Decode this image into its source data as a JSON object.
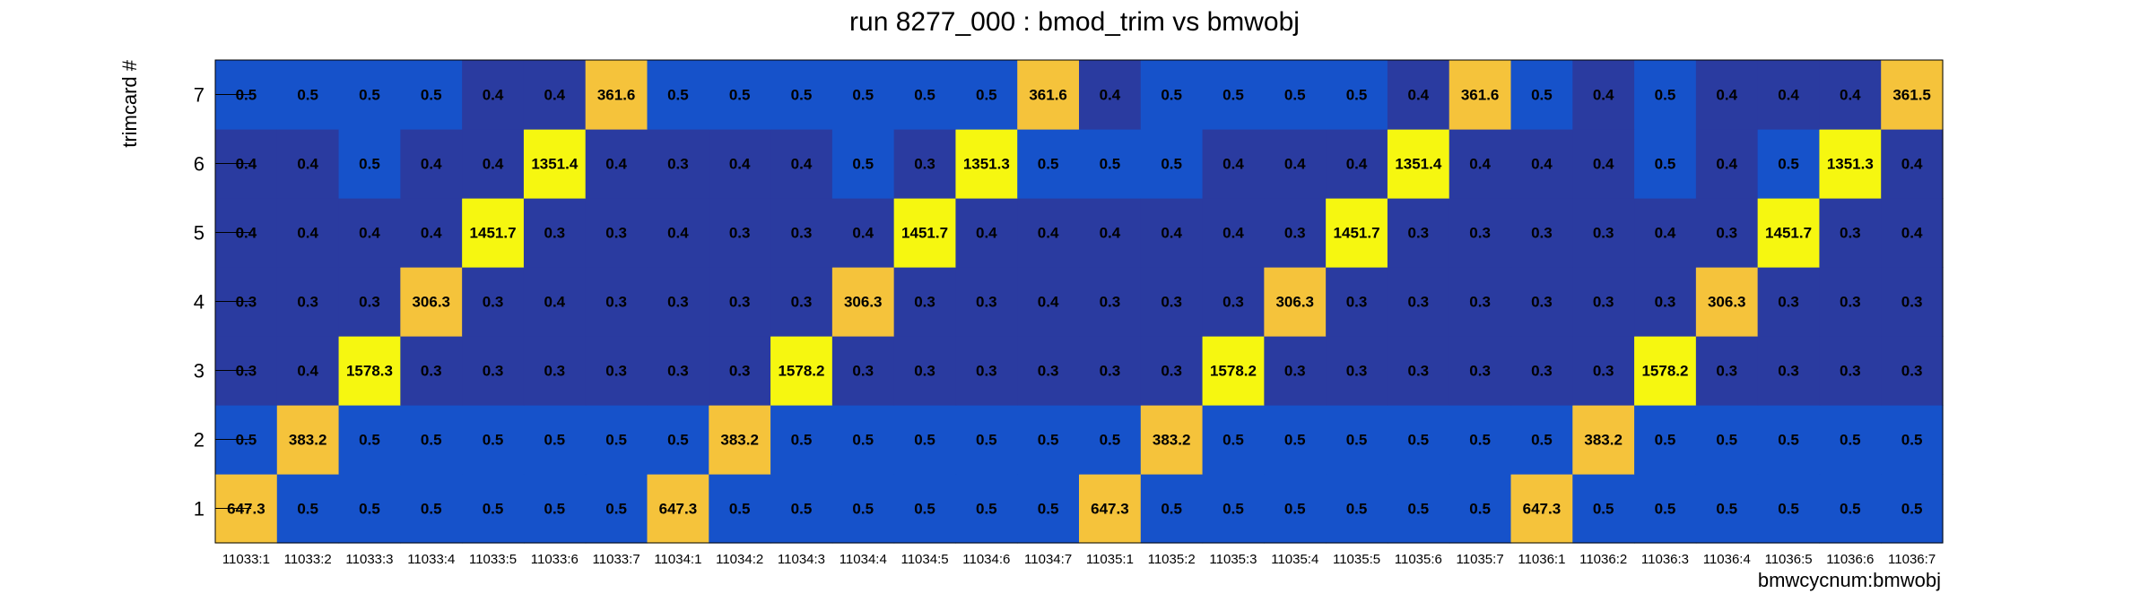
{
  "chart_data": {
    "type": "heatmap",
    "title": "run 8277_000 : bmod_trim vs bmwobj",
    "xlabel": "bmwcycnum:bmwobj",
    "ylabel": "trimcard #",
    "x_categories": [
      "11033:1",
      "11033:2",
      "11033:3",
      "11033:4",
      "11033:5",
      "11033:6",
      "11033:7",
      "11034:1",
      "11034:2",
      "11034:3",
      "11034:4",
      "11034:5",
      "11034:6",
      "11034:7",
      "11035:1",
      "11035:2",
      "11035:3",
      "11035:4",
      "11035:5",
      "11035:6",
      "11035:7",
      "11036:1",
      "11036:2",
      "11036:3",
      "11036:4",
      "11036:5",
      "11036:6",
      "11036:7"
    ],
    "y_categories": [
      "1",
      "2",
      "3",
      "4",
      "5",
      "6",
      "7"
    ],
    "grid": false,
    "colors": {
      "low_dark": "#2a3ba0",
      "low_mid": "#1652ca",
      "high_orange": "#f5c33b",
      "high_yellow": "#f6f710"
    },
    "rows": [
      {
        "y": "1",
        "values": [
          "647.3",
          "0.5",
          "0.5",
          "0.5",
          "0.5",
          "0.5",
          "0.5",
          "647.3",
          "0.5",
          "0.5",
          "0.5",
          "0.5",
          "0.5",
          "0.5",
          "647.3",
          "0.5",
          "0.5",
          "0.5",
          "0.5",
          "0.5",
          "0.5",
          "647.3",
          "0.5",
          "0.5",
          "0.5",
          "0.5",
          "0.5",
          "0.5"
        ]
      },
      {
        "y": "2",
        "values": [
          "0.5",
          "383.2",
          "0.5",
          "0.5",
          "0.5",
          "0.5",
          "0.5",
          "0.5",
          "383.2",
          "0.5",
          "0.5",
          "0.5",
          "0.5",
          "0.5",
          "0.5",
          "383.2",
          "0.5",
          "0.5",
          "0.5",
          "0.5",
          "0.5",
          "0.5",
          "383.2",
          "0.5",
          "0.5",
          "0.5",
          "0.5",
          "0.5"
        ]
      },
      {
        "y": "3",
        "values": [
          "0.3",
          "0.4",
          "1578.3",
          "0.3",
          "0.3",
          "0.3",
          "0.3",
          "0.3",
          "0.3",
          "1578.2",
          "0.3",
          "0.3",
          "0.3",
          "0.3",
          "0.3",
          "0.3",
          "1578.2",
          "0.3",
          "0.3",
          "0.3",
          "0.3",
          "0.3",
          "0.3",
          "1578.2",
          "0.3",
          "0.3",
          "0.3",
          "0.3"
        ]
      },
      {
        "y": "4",
        "values": [
          "0.3",
          "0.3",
          "0.3",
          "306.3",
          "0.3",
          "0.4",
          "0.3",
          "0.3",
          "0.3",
          "0.3",
          "306.3",
          "0.3",
          "0.3",
          "0.4",
          "0.3",
          "0.3",
          "0.3",
          "306.3",
          "0.3",
          "0.3",
          "0.3",
          "0.3",
          "0.3",
          "0.3",
          "306.3",
          "0.3",
          "0.3",
          "0.3"
        ]
      },
      {
        "y": "5",
        "values": [
          "0.4",
          "0.4",
          "0.4",
          "0.4",
          "1451.7",
          "0.3",
          "0.3",
          "0.4",
          "0.3",
          "0.3",
          "0.4",
          "1451.7",
          "0.4",
          "0.4",
          "0.4",
          "0.4",
          "0.4",
          "0.3",
          "1451.7",
          "0.3",
          "0.3",
          "0.3",
          "0.3",
          "0.4",
          "0.3",
          "1451.7",
          "0.3",
          "0.4"
        ]
      },
      {
        "y": "6",
        "values": [
          "0.4",
          "0.4",
          "0.5",
          "0.4",
          "0.4",
          "1351.4",
          "0.4",
          "0.3",
          "0.4",
          "0.4",
          "0.5",
          "0.3",
          "1351.3",
          "0.5",
          "0.5",
          "0.5",
          "0.4",
          "0.4",
          "0.4",
          "1351.4",
          "0.4",
          "0.4",
          "0.4",
          "0.5",
          "0.4",
          "0.5",
          "1351.3",
          "0.4"
        ]
      },
      {
        "y": "7",
        "values": [
          "0.5",
          "0.5",
          "0.5",
          "0.5",
          "0.4",
          "0.4",
          "361.6",
          "0.5",
          "0.5",
          "0.5",
          "0.5",
          "0.5",
          "0.5",
          "361.6",
          "0.4",
          "0.5",
          "0.5",
          "0.5",
          "0.5",
          "0.4",
          "361.6",
          "0.5",
          "0.4",
          "0.5",
          "0.4",
          "0.4",
          "0.4",
          "361.5"
        ]
      }
    ]
  }
}
